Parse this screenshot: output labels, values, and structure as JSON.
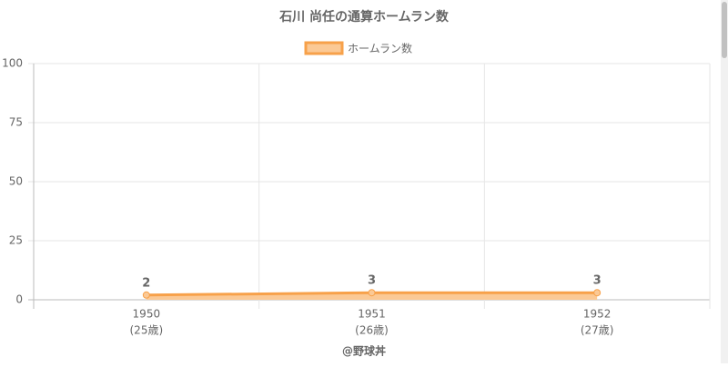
{
  "chart_data": {
    "type": "line",
    "title": "石川 尚任の通算ホームラン数",
    "categories": [
      "1950",
      "1951",
      "1952"
    ],
    "category_sublabels": [
      "(25歳)",
      "(26歳)",
      "(27歳)"
    ],
    "series": [
      {
        "name": "ホームラン数",
        "color": "#f7a14a",
        "fill": "#fbc995",
        "values": [
          2,
          3,
          3
        ]
      }
    ],
    "ylim": [
      0,
      100
    ],
    "yticks": [
      0,
      25,
      50,
      75,
      100
    ],
    "grid": true,
    "legend": "top",
    "footer": "@野球丼"
  }
}
